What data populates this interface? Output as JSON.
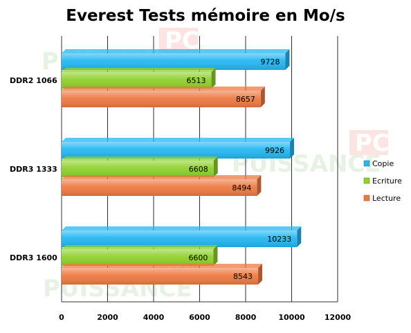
{
  "chart_data": {
    "type": "bar",
    "orientation": "horizontal",
    "title": "Everest Tests mémoire en Mo/s",
    "categories": [
      "DDR2 1066",
      "DDR3 1333",
      "DDR3 1600"
    ],
    "series": [
      {
        "name": "Copie",
        "color": "#24b7f2",
        "values": [
          9728,
          9926,
          10233
        ]
      },
      {
        "name": "Ecriture",
        "color": "#8fd12c",
        "values": [
          6513,
          6608,
          6600
        ]
      },
      {
        "name": "Lecture",
        "color": "#ee7a42",
        "values": [
          8657,
          8494,
          8543
        ]
      }
    ],
    "xlim": [
      0,
      12000
    ],
    "x_ticks": [
      0,
      2000,
      4000,
      6000,
      8000,
      10000,
      12000
    ],
    "x_tick_labels": [
      "0",
      "2000",
      "4000",
      "6000",
      "8000",
      "10000",
      "12000"
    ],
    "grid": true,
    "legend_position": "right",
    "xlabel": "",
    "ylabel": ""
  },
  "watermark": {
    "text": "PUISSANCE",
    "badge": "PC"
  }
}
